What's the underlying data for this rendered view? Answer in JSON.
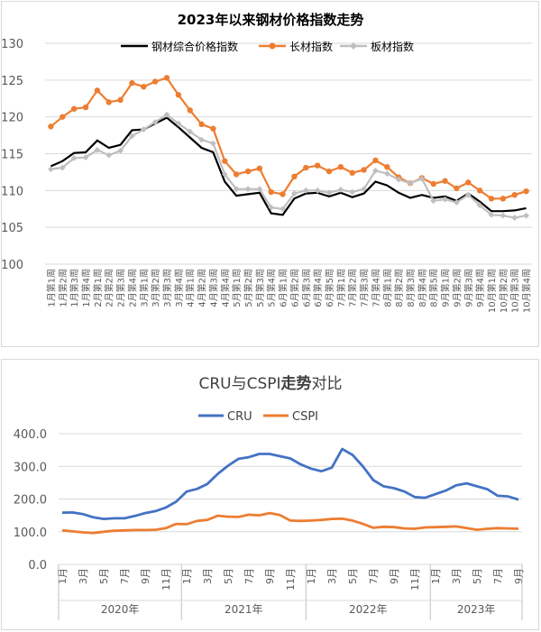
{
  "chart_data": [
    {
      "type": "line",
      "title": "2023年以来钢材价格指数走势",
      "ylim": [
        100,
        130
      ],
      "yticks": [
        "100",
        "105",
        "110",
        "115",
        "120",
        "125",
        "130"
      ],
      "grid": true,
      "legend_position": "top",
      "categories": [
        "1月第1周",
        "1月第2周",
        "1月第3周",
        "1月第4周",
        "2月第1周",
        "2月第2周",
        "2月第3周",
        "2月第4周",
        "3月第1周",
        "3月第2周",
        "3月第3周",
        "3月第4周",
        "4月第1周",
        "4月第2周",
        "4月第3周",
        "4月第4周",
        "5月第1周",
        "5月第2周",
        "5月第3周",
        "5月第4周",
        "6月第1周",
        "6月第2周",
        "6月第3周",
        "6月第4周",
        "6月第5周",
        "7月第1周",
        "7月第2周",
        "7月第3周",
        "7月第4周",
        "8月第1周",
        "8月第2周",
        "8月第3周",
        "8月第4周",
        "8月第5周",
        "9月第1周",
        "9月第2周",
        "9月第3周",
        "9月第4周",
        "10月第1周",
        "10月第2周",
        "10月第3周",
        "10月第4周"
      ],
      "series": [
        {
          "name": "钢材综合价格指数",
          "color": "#000000",
          "marker": "none",
          "values": [
            113.3,
            114.0,
            115.1,
            115.2,
            116.8,
            115.8,
            116.2,
            118.2,
            118.3,
            119.1,
            119.9,
            118.6,
            117.2,
            115.8,
            115.2,
            111.2,
            109.3,
            109.5,
            109.7,
            106.9,
            106.7,
            108.9,
            109.6,
            109.7,
            109.2,
            109.7,
            109.1,
            109.6,
            111.2,
            110.7,
            109.7,
            109.0,
            109.4,
            109.0,
            109.2,
            108.6,
            109.6,
            108.5,
            107.2,
            107.2,
            107.3,
            107.6
          ]
        },
        {
          "name": "长材指数",
          "color": "#ED7D31",
          "marker": "circle",
          "values": [
            118.7,
            120.0,
            121.1,
            121.3,
            123.6,
            122.0,
            122.3,
            124.6,
            124.1,
            124.8,
            125.3,
            123.0,
            120.9,
            119.0,
            118.4,
            114.0,
            112.2,
            112.6,
            113.0,
            109.8,
            109.5,
            111.9,
            113.1,
            113.4,
            112.6,
            113.2,
            112.4,
            112.8,
            114.1,
            113.2,
            111.8,
            111.0,
            111.7,
            110.9,
            111.3,
            110.3,
            111.1,
            110.0,
            108.9,
            108.9,
            109.4,
            109.9
          ]
        },
        {
          "name": "板材指数",
          "color": "#BFBFBF",
          "marker": "diamond",
          "values": [
            112.9,
            113.1,
            114.4,
            114.5,
            115.5,
            114.8,
            115.4,
            117.4,
            118.3,
            119.3,
            120.3,
            119.1,
            118.0,
            116.9,
            116.4,
            112.2,
            110.2,
            110.2,
            110.2,
            107.7,
            107.5,
            109.6,
            110.0,
            110.0,
            109.7,
            110.1,
            109.8,
            110.2,
            112.7,
            112.3,
            111.5,
            111.0,
            111.6,
            108.6,
            108.8,
            108.4,
            109.4,
            108.0,
            106.7,
            106.6,
            106.3,
            106.6
          ]
        }
      ]
    },
    {
      "type": "line",
      "title": "CRU与CSPI走势对比",
      "title_parts": [
        {
          "text": "CRU与CSPI",
          "weight": "normal"
        },
        {
          "text": "走势",
          "weight": "bold"
        },
        {
          "text": "对比",
          "weight": "normal"
        }
      ],
      "ylim": [
        0,
        400
      ],
      "yticks": [
        "0.0",
        "100.0",
        "200.0",
        "300.0",
        "400.0"
      ],
      "grid": true,
      "legend_position": "top",
      "month_labels": [
        "1月",
        "3月",
        "5月",
        "7月",
        "9月",
        "11月",
        "1月",
        "3月",
        "5月",
        "7月",
        "9月",
        "11月",
        "1月",
        "3月",
        "5月",
        "7月",
        "9月",
        "11月",
        "1月",
        "3月",
        "5月",
        "7月",
        "9月"
      ],
      "years": [
        "2020年",
        "2021年",
        "2022年",
        "2023年"
      ],
      "series": [
        {
          "name": "CRU",
          "color": "#4472C4",
          "values": [
            158,
            159,
            154,
            144,
            139,
            141,
            141,
            148,
            157,
            163,
            174,
            192,
            223,
            231,
            246,
            277,
            302,
            323,
            328,
            338,
            338,
            331,
            324,
            306,
            293,
            285,
            296,
            353,
            335,
            300,
            258,
            239,
            233,
            223,
            206,
            204,
            215,
            226,
            242,
            248,
            239,
            230,
            210,
            208,
            198
          ]
        },
        {
          "name": "CSPI",
          "color": "#ED7D31",
          "values": [
            104,
            101,
            98,
            96,
            100,
            103,
            104,
            105,
            105,
            106,
            111,
            124,
            123,
            133,
            136,
            149,
            146,
            145,
            152,
            150,
            157,
            151,
            134,
            133,
            134,
            136,
            139,
            140,
            134,
            124,
            112,
            115,
            114,
            110,
            109,
            113,
            114,
            115,
            116,
            111,
            106,
            109,
            111,
            110,
            109
          ]
        }
      ]
    }
  ]
}
